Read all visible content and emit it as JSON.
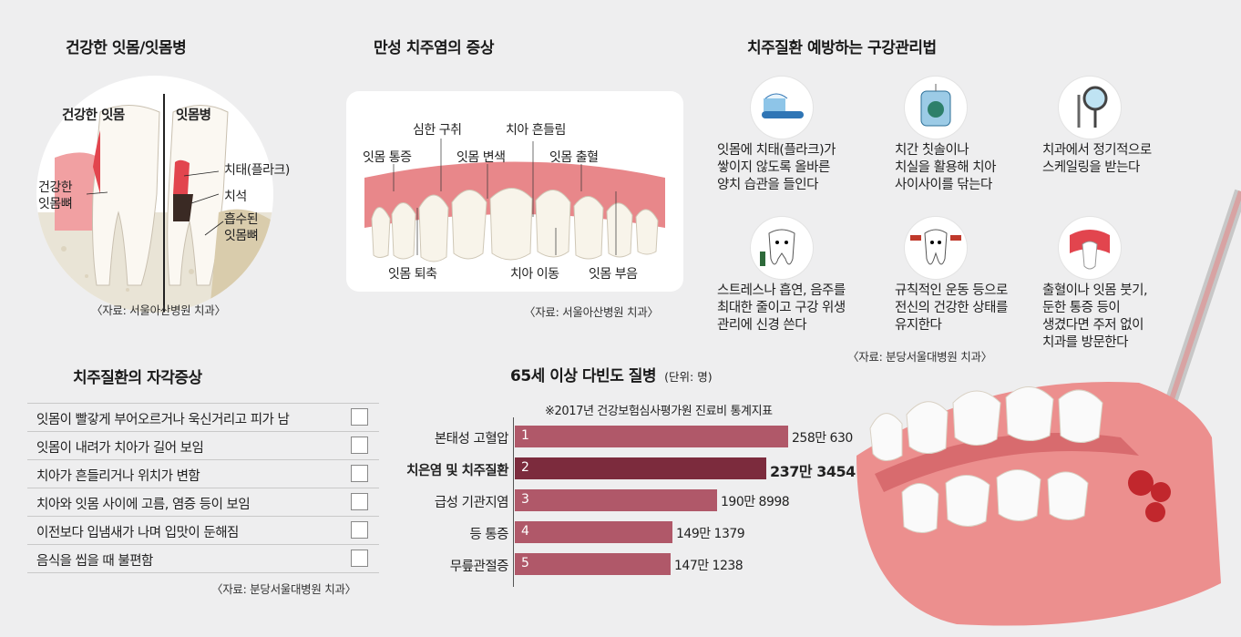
{
  "section1": {
    "title": "건강한 잇몸/잇몸병",
    "healthy_label": "건강한 잇몸",
    "disease_label": "잇몸병",
    "left_label": "건강한\n잇몸뼈",
    "right_labels": [
      "치태(플라크)",
      "치석",
      "흡수된\n잇몸뼈"
    ],
    "source": "〈자료: 서울아산병원 치과〉"
  },
  "section2": {
    "title": "만성 치주염의 증상",
    "labels_top": [
      "심한 구취",
      "치아 흔들림",
      "잇몸 통증",
      "잇몸 변색",
      "잇몸 출혈"
    ],
    "labels_bottom": [
      "잇몸 퇴축",
      "치아 이동",
      "잇몸 부음"
    ],
    "source": "〈자료: 서울아산병원 치과〉"
  },
  "section3": {
    "title": "치주질환 예방하는 구강관리법",
    "tips": [
      {
        "icon": "toothbrush-icon",
        "text": "잇몸에 치태(플라크)가\n쌓이지 않도록 올바른\n양치 습관을 들인다"
      },
      {
        "icon": "dental-floss-icon",
        "text": "치간 칫솔이나\n치실을 활용해 치아\n사이사이를 닦는다"
      },
      {
        "icon": "dental-mirror-icon",
        "text": "치과에서 정기적으로\n스케일링을 받는다"
      },
      {
        "icon": "sad-tooth-icon",
        "text": "스트레스나 흡연, 음주를\n최대한 줄이고 구강 위생\n관리에 신경 쓴다"
      },
      {
        "icon": "exercise-tooth-icon",
        "text": "규칙적인 운동 등으로\n전신의 건강한 상태를\n유지한다"
      },
      {
        "icon": "bleeding-gum-icon",
        "text": "출혈이나 잇몸 붓기,\n둔한 통증 등이\n생겼다면 주저 없이\n치과를 방문한다"
      }
    ],
    "source": "〈자료: 분당서울대병원 치과〉"
  },
  "section4": {
    "title": "치주질환의 자각증상",
    "items": [
      "잇몸이 빨갛게 부어오르거나 욱신거리고 피가 남",
      "잇몸이 내려가 치아가 길어 보임",
      "치아가 흔들리거나 위치가 변함",
      "치아와 잇몸 사이에 고름, 염증 등이 보임",
      "이전보다 입냄새가 나며 입맛이 둔해짐",
      "음식을 씹을 때 불편함"
    ],
    "source": "〈자료: 분당서울대병원 치과〉"
  },
  "section5": {
    "title": "65세 이상 다빈도 질병",
    "unit": "(단위: 명)",
    "note": "※2017년 건강보험심사평가원 진료비 통계지표"
  },
  "chart_data": {
    "type": "bar",
    "orientation": "horizontal",
    "title": "65세 이상 다빈도 질병",
    "unit": "명",
    "categories": [
      "본태성 고혈압",
      "치은염 및 치주질환",
      "급성 기관지염",
      "등 통증",
      "무릎관절증"
    ],
    "ranks": [
      "1",
      "2",
      "3",
      "4",
      "5"
    ],
    "values": [
      2580630,
      2373454,
      1908998,
      1491379,
      1471238
    ],
    "value_labels": [
      "258만 630",
      "237만 3454",
      "190만 8998",
      "149만 1379",
      "147만 1238"
    ],
    "highlight_index": 1,
    "colors": {
      "bar": "#b05869",
      "highlight": "#7c2b3d"
    }
  }
}
